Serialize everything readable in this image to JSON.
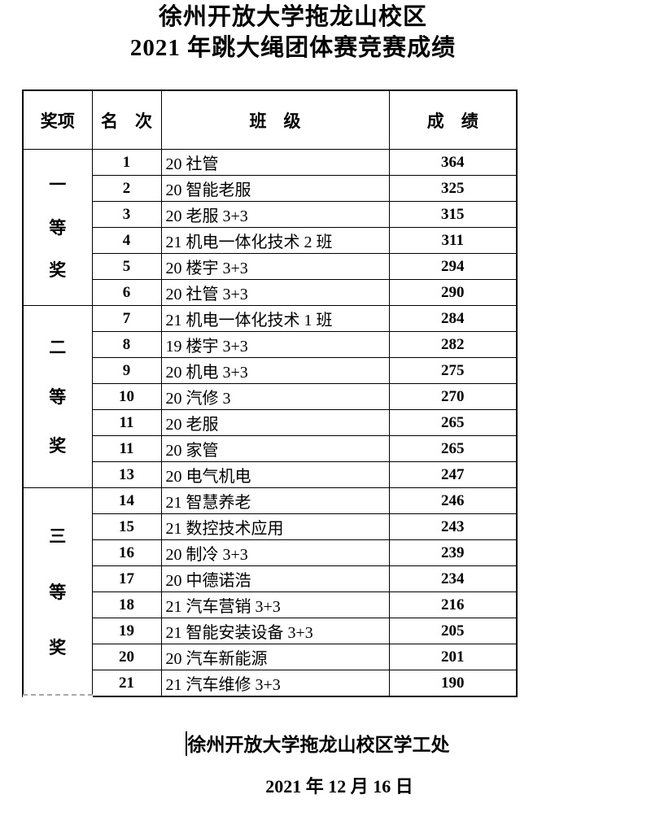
{
  "header": {
    "title_line1": "徐州开放大学拖龙山校区",
    "title_line2": "2021 年跳大绳团体赛竞赛成绩"
  },
  "table": {
    "headers": {
      "award": "奖项",
      "rank": "名　次",
      "class_name": "班　级",
      "score": "成　绩"
    },
    "groups": [
      {
        "label": "一等奖",
        "row_span": 6
      },
      {
        "label": "二等奖",
        "row_span": 7
      },
      {
        "label": "三等奖",
        "row_span": 8
      }
    ],
    "rows": [
      {
        "rank": "1",
        "class_name": "20 社管",
        "score": "364"
      },
      {
        "rank": "2",
        "class_name": "20 智能老服",
        "score": "325"
      },
      {
        "rank": "3",
        "class_name": "20 老服 3+3",
        "score": "315"
      },
      {
        "rank": "4",
        "class_name": "21 机电一体化技术 2 班",
        "score": "311"
      },
      {
        "rank": "5",
        "class_name": "20 楼宇 3+3",
        "score": "294"
      },
      {
        "rank": "6",
        "class_name": "20 社管 3+3",
        "score": "290"
      },
      {
        "rank": "7",
        "class_name": "21 机电一体化技术 1 班",
        "score": "284"
      },
      {
        "rank": "8",
        "class_name": "19 楼宇 3+3",
        "score": "282"
      },
      {
        "rank": "9",
        "class_name": "20 机电 3+3",
        "score": "275"
      },
      {
        "rank": "10",
        "class_name": "20 汽修 3",
        "score": "270"
      },
      {
        "rank": "11",
        "class_name": "20 老服",
        "score": "265"
      },
      {
        "rank": "11",
        "class_name": "20 家管",
        "score": "265"
      },
      {
        "rank": "13",
        "class_name": "20 电气机电",
        "score": "247"
      },
      {
        "rank": "14",
        "class_name": "21 智慧养老",
        "score": "246"
      },
      {
        "rank": "15",
        "class_name": "21 数控技术应用",
        "score": "243"
      },
      {
        "rank": "16",
        "class_name": "20 制冷 3+3",
        "score": "239"
      },
      {
        "rank": "17",
        "class_name": "20 中德诺浩",
        "score": "234"
      },
      {
        "rank": "18",
        "class_name": "21 汽车营销 3+3",
        "score": "216"
      },
      {
        "rank": "19",
        "class_name": "21 智能安装设备 3+3",
        "score": "205"
      },
      {
        "rank": "20",
        "class_name": "20 汽车新能源",
        "score": "201"
      },
      {
        "rank": "21",
        "class_name": "21 汽车维修 3+3",
        "score": "190"
      }
    ]
  },
  "footer": {
    "signature": "徐州开放大学拖龙山校区学工处",
    "date": "2021 年 12 月 16 日"
  }
}
